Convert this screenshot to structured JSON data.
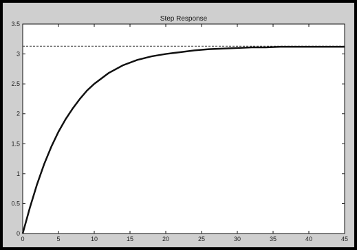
{
  "chart_data": {
    "type": "line",
    "title": "Step Response",
    "xlabel": "",
    "ylabel": "",
    "xlim": [
      0,
      45
    ],
    "ylim": [
      0,
      3.5
    ],
    "x_ticks": [
      0,
      5,
      10,
      15,
      20,
      25,
      30,
      35,
      40,
      45
    ],
    "y_ticks": [
      0,
      0.5,
      1,
      1.5,
      2,
      2.5,
      3,
      3.5
    ],
    "x_tick_labels": [
      "0",
      "5",
      "10",
      "15",
      "20",
      "25",
      "30",
      "35",
      "40",
      "45"
    ],
    "y_tick_labels": [
      "0",
      "0.5",
      "1",
      "1.5",
      "2",
      "2.5",
      "3",
      "3.5"
    ],
    "grid": false,
    "series": [
      {
        "x": [
          0,
          1,
          2,
          3,
          4,
          5,
          6,
          7,
          8,
          9,
          10,
          12,
          14,
          16,
          18,
          20,
          22,
          24,
          26,
          28,
          30,
          32,
          34,
          36,
          38,
          40,
          42,
          45
        ],
        "y": [
          0,
          0.43,
          0.82,
          1.16,
          1.45,
          1.7,
          1.91,
          2.09,
          2.25,
          2.39,
          2.5,
          2.68,
          2.81,
          2.9,
          2.96,
          3.0,
          3.03,
          3.06,
          3.08,
          3.09,
          3.1,
          3.11,
          3.11,
          3.12,
          3.12,
          3.12,
          3.12,
          3.12
        ],
        "color": "#111111"
      }
    ],
    "reference_lines": [
      {
        "orientation": "horizontal",
        "y": 3.13,
        "style": "dashed",
        "color": "#333333"
      }
    ]
  }
}
